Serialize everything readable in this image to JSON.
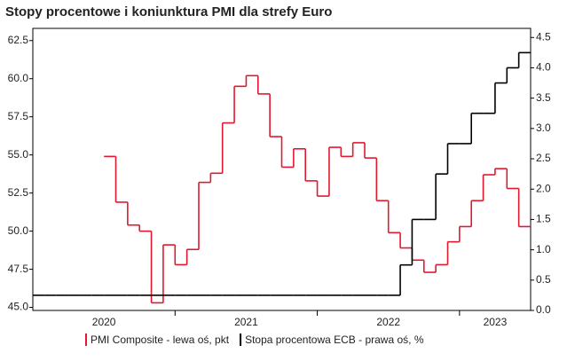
{
  "chart_data": {
    "type": "step",
    "title": "Stopy procentowe i koniunktura PMI dla strefy Euro",
    "categories": [
      null,
      null,
      null,
      null,
      null,
      null,
      "2020",
      null,
      null,
      null,
      null,
      null,
      null,
      null,
      null,
      null,
      null,
      null,
      "2021",
      null,
      null,
      null,
      null,
      null,
      null,
      null,
      null,
      null,
      null,
      null,
      "2022",
      null,
      null,
      null,
      null,
      null,
      null,
      null,
      null,
      "2023",
      null,
      null
    ],
    "series": [
      {
        "name": "PMI Composite - lewa oś, pkt",
        "color": "#e0192e",
        "values": [
          null,
          null,
          null,
          null,
          null,
          null,
          54.9,
          51.9,
          50.4,
          50.0,
          45.3,
          49.1,
          47.8,
          48.8,
          53.2,
          53.8,
          57.1,
          59.5,
          60.2,
          59.0,
          56.2,
          54.2,
          55.4,
          53.3,
          52.3,
          55.5,
          54.9,
          55.8,
          54.8,
          52.0,
          49.9,
          48.9,
          48.1,
          47.3,
          47.8,
          49.3,
          50.3,
          52.0,
          53.7,
          54.1,
          52.8,
          50.3
        ]
      },
      {
        "name": "Stopa procentowa ECB - prawa oś, %",
        "color": "#000000",
        "axis": "y2",
        "values": [
          0.25,
          0.25,
          0.25,
          0.25,
          0.25,
          0.25,
          0.25,
          0.25,
          0.25,
          0.25,
          0.25,
          0.25,
          0.25,
          0.25,
          0.25,
          0.25,
          0.25,
          0.25,
          0.25,
          0.25,
          0.25,
          0.25,
          0.25,
          0.25,
          0.25,
          0.25,
          0.25,
          0.25,
          0.25,
          0.25,
          0.25,
          0.75,
          1.5,
          1.5,
          2.25,
          2.75,
          2.75,
          3.25,
          3.25,
          3.75,
          4.0,
          4.25
        ]
      }
    ],
    "ylim": [
      44.8,
      63.3
    ],
    "yticks": [
      {
        "value": 45,
        "label": "45.0"
      },
      47.5,
      {
        "value": 50,
        "label": "50.0"
      },
      52.5,
      {
        "value": 55,
        "label": "55.0"
      },
      57.5,
      {
        "value": 60,
        "label": "60.0"
      },
      62.5
    ],
    "y2lim": [
      0,
      4.65
    ],
    "y2ticks": [
      {
        "value": 0,
        "label": "0.0"
      },
      0.5,
      {
        "value": 1,
        "label": "1.0"
      },
      1.5,
      {
        "value": 2,
        "label": "2.0"
      },
      2.5,
      {
        "value": 3,
        "label": "3.0"
      },
      3.5,
      {
        "value": 4,
        "label": "4.0"
      },
      4.5
    ],
    "legend": "bottom"
  }
}
